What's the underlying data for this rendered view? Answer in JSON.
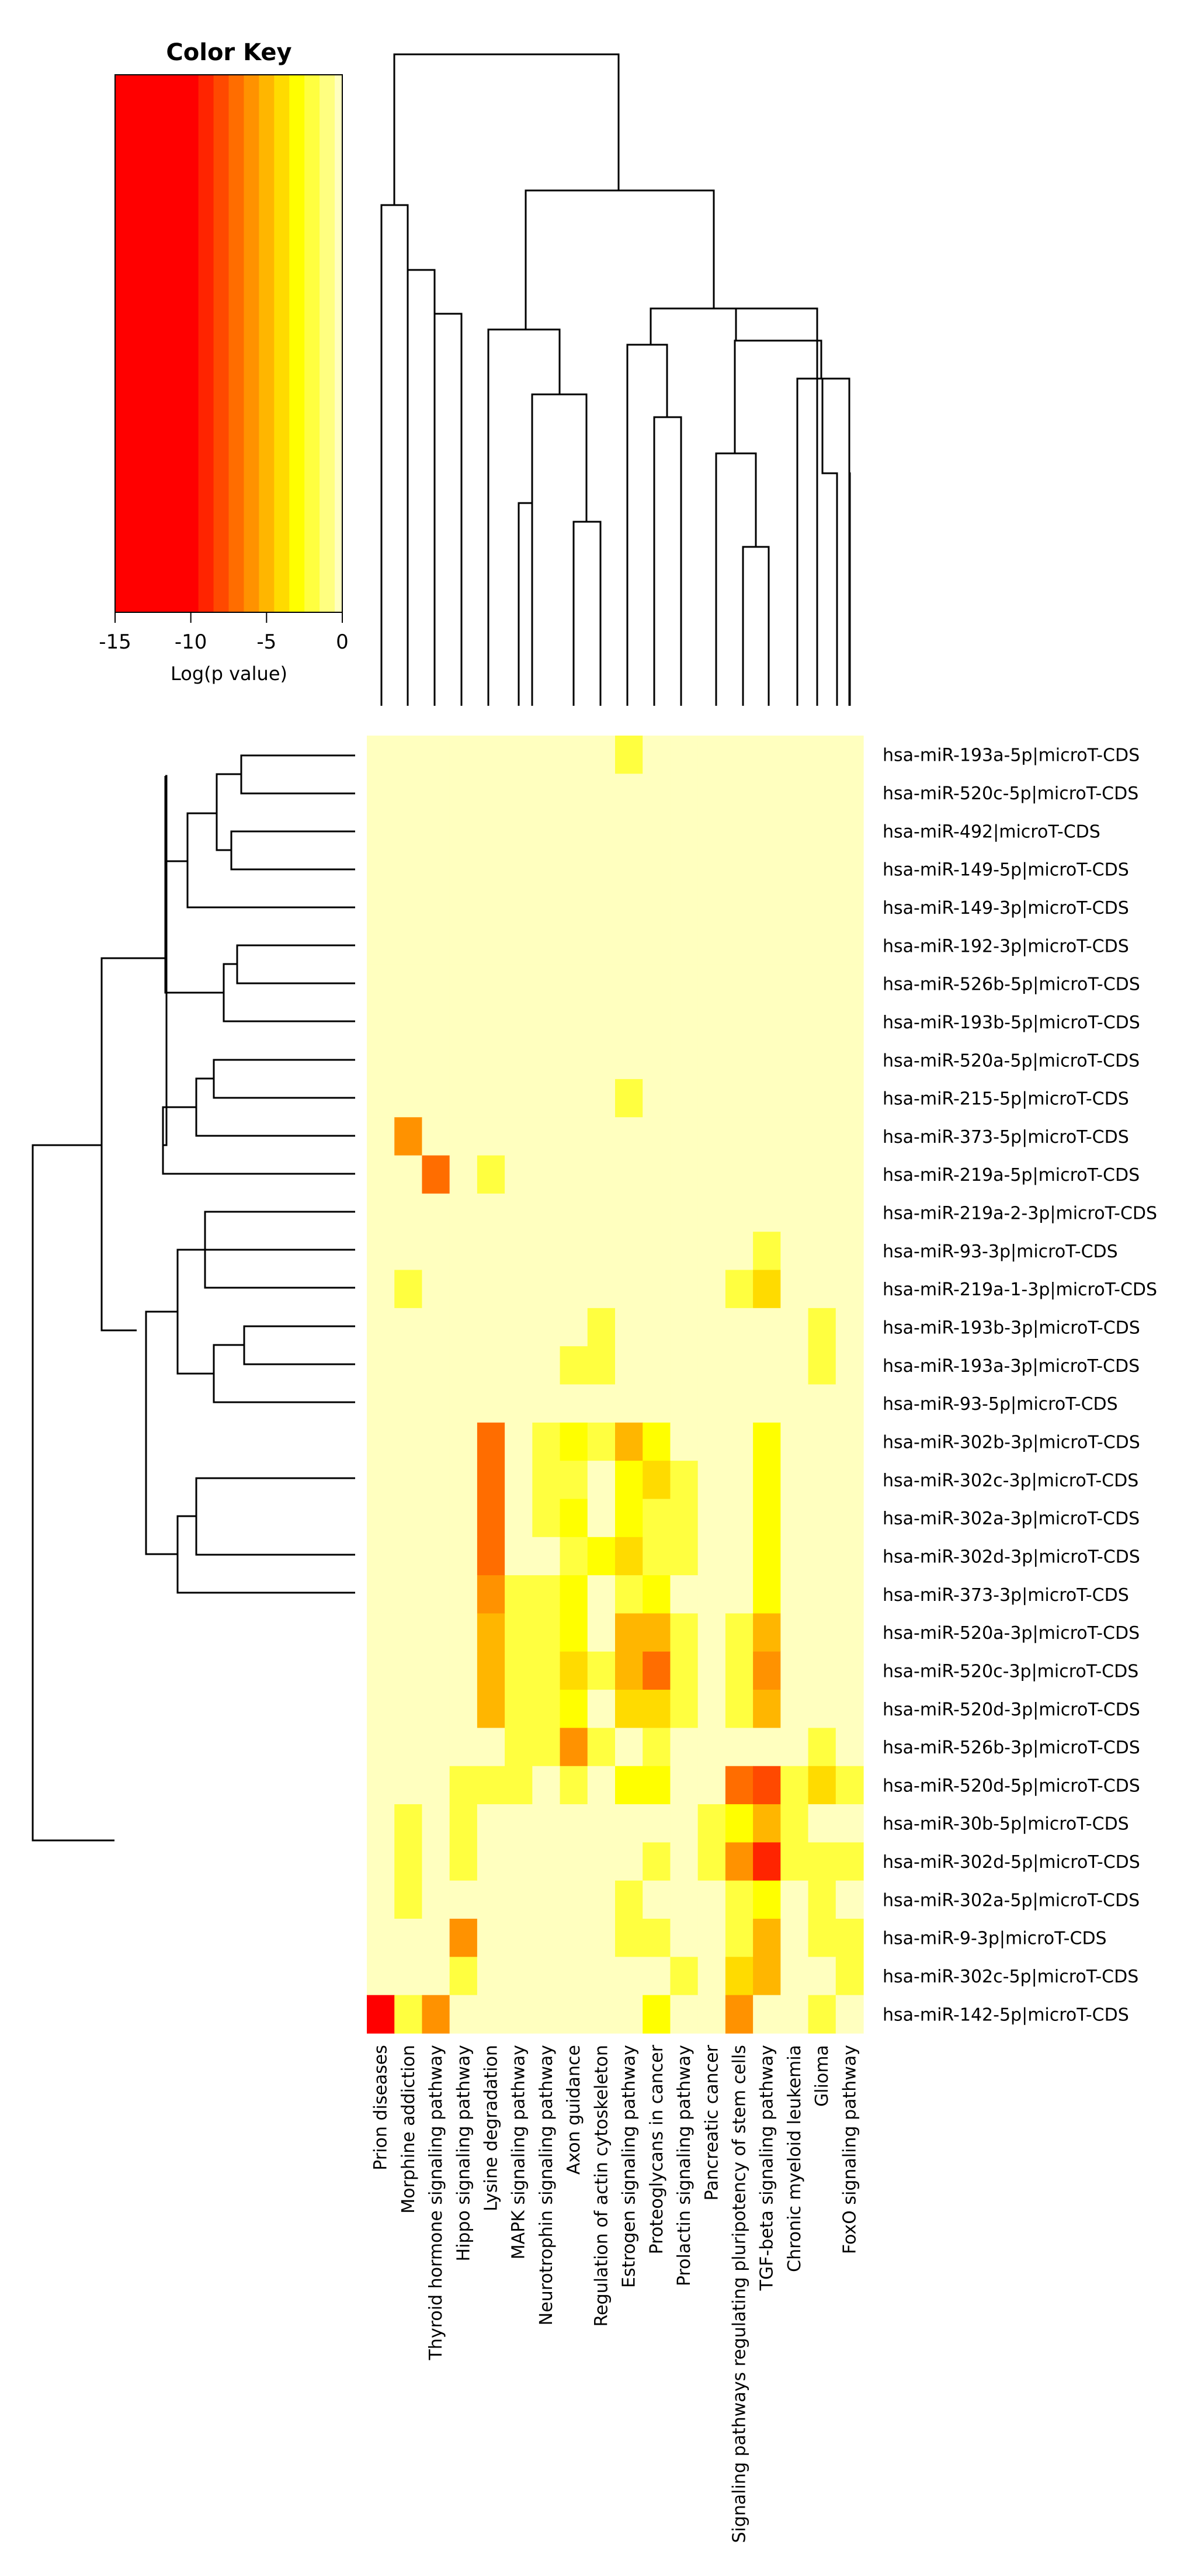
{
  "chart_data": {
    "type": "heatmap",
    "title": "",
    "color_key": {
      "title": "Color Key",
      "xlabel": "Log(p value)",
      "range": [
        -15,
        0
      ],
      "ticks": [
        -15,
        -10,
        -5,
        0
      ],
      "bins": [
        {
          "from": -15,
          "to": -9.5,
          "color": "#ff0000"
        },
        {
          "from": -9.5,
          "to": -8.5,
          "color": "#ff2400"
        },
        {
          "from": -8.5,
          "to": -7.5,
          "color": "#ff4900"
        },
        {
          "from": -7.5,
          "to": -6.5,
          "color": "#ff6d00"
        },
        {
          "from": -6.5,
          "to": -5.5,
          "color": "#ff9200"
        },
        {
          "from": -5.5,
          "to": -4.5,
          "color": "#ffb600"
        },
        {
          "from": -4.5,
          "to": -3.5,
          "color": "#ffdb00"
        },
        {
          "from": -3.5,
          "to": -2.5,
          "color": "#ffff00"
        },
        {
          "from": -2.5,
          "to": -1.5,
          "color": "#ffff40"
        },
        {
          "from": -1.5,
          "to": -0.5,
          "color": "#ffff80"
        },
        {
          "from": -0.5,
          "to": 0,
          "color": "#ffffbf"
        }
      ]
    },
    "columns": [
      "Prion diseases",
      "Morphine addiction",
      "Thyroid hormone signaling pathway",
      "Hippo signaling pathway",
      "Lysine degradation",
      "MAPK signaling pathway",
      "Neurotrophin signaling pathway",
      "Axon guidance",
      "Regulation of actin cytoskeleton",
      "Estrogen signaling pathway",
      "Proteoglycans in cancer",
      "Prolactin signaling pathway",
      "Pancreatic cancer",
      "Signaling pathways regulating pluripotency of stem cells",
      "TGF-beta signaling pathway",
      "Chronic myeloid leukemia",
      "Glioma",
      "FoxO signaling pathway"
    ],
    "rows": [
      "hsa-miR-193a-5p|microT-CDS",
      "hsa-miR-520c-5p|microT-CDS",
      "hsa-miR-492|microT-CDS",
      "hsa-miR-149-5p|microT-CDS",
      "hsa-miR-149-3p|microT-CDS",
      "hsa-miR-192-3p|microT-CDS",
      "hsa-miR-526b-5p|microT-CDS",
      "hsa-miR-193b-5p|microT-CDS",
      "hsa-miR-520a-5p|microT-CDS",
      "hsa-miR-215-5p|microT-CDS",
      "hsa-miR-373-5p|microT-CDS",
      "hsa-miR-219a-5p|microT-CDS",
      "hsa-miR-219a-2-3p|microT-CDS",
      "hsa-miR-93-3p|microT-CDS",
      "hsa-miR-219a-1-3p|microT-CDS",
      "hsa-miR-193b-3p|microT-CDS",
      "hsa-miR-193a-3p|microT-CDS",
      "hsa-miR-93-5p|microT-CDS",
      "hsa-miR-302b-3p|microT-CDS",
      "hsa-miR-302c-3p|microT-CDS",
      "hsa-miR-302a-3p|microT-CDS",
      "hsa-miR-302d-3p|microT-CDS",
      "hsa-miR-373-3p|microT-CDS",
      "hsa-miR-520a-3p|microT-CDS",
      "hsa-miR-520c-3p|microT-CDS",
      "hsa-miR-520d-3p|microT-CDS",
      "hsa-miR-526b-3p|microT-CDS",
      "hsa-miR-520d-5p|microT-CDS",
      "hsa-miR-30b-5p|microT-CDS",
      "hsa-miR-302d-5p|microT-CDS",
      "hsa-miR-302a-5p|microT-CDS",
      "hsa-miR-9-3p|microT-CDS",
      "hsa-miR-302c-5p|microT-CDS",
      "hsa-miR-142-5p|microT-CDS"
    ],
    "values": [
      [
        0,
        0,
        0,
        0,
        0,
        0,
        0,
        0,
        0,
        -2,
        0,
        0,
        0,
        0,
        0,
        0,
        0,
        0
      ],
      [
        0,
        0,
        0,
        0,
        0,
        0,
        0,
        0,
        0,
        0,
        0,
        0,
        0,
        0,
        0,
        0,
        0,
        0
      ],
      [
        0,
        0,
        0,
        0,
        0,
        0,
        0,
        0,
        0,
        0,
        0,
        0,
        0,
        0,
        0,
        0,
        0,
        0
      ],
      [
        0,
        0,
        0,
        0,
        0,
        0,
        0,
        0,
        0,
        0,
        0,
        0,
        0,
        0,
        0,
        0,
        0,
        0
      ],
      [
        0,
        0,
        0,
        0,
        0,
        0,
        0,
        0,
        0,
        0,
        0,
        0,
        0,
        0,
        0,
        0,
        0,
        0
      ],
      [
        0,
        0,
        0,
        0,
        0,
        0,
        0,
        0,
        0,
        0,
        0,
        0,
        0,
        0,
        0,
        0,
        0,
        0
      ],
      [
        0,
        0,
        0,
        0,
        0,
        0,
        0,
        0,
        0,
        0,
        0,
        0,
        0,
        0,
        0,
        0,
        0,
        0
      ],
      [
        0,
        0,
        0,
        0,
        0,
        0,
        0,
        0,
        0,
        0,
        0,
        0,
        0,
        0,
        0,
        0,
        0,
        0
      ],
      [
        0,
        0,
        0,
        0,
        0,
        0,
        0,
        0,
        0,
        0,
        0,
        0,
        0,
        0,
        0,
        0,
        0,
        0
      ],
      [
        0,
        0,
        0,
        0,
        0,
        0,
        0,
        0,
        0,
        -2,
        0,
        0,
        0,
        0,
        0,
        0,
        0,
        0
      ],
      [
        0,
        -6,
        0,
        0,
        0,
        0,
        0,
        0,
        0,
        0,
        0,
        0,
        0,
        0,
        0,
        0,
        0,
        0
      ],
      [
        0,
        0,
        -7,
        0,
        -2,
        0,
        0,
        0,
        0,
        0,
        0,
        0,
        0,
        0,
        0,
        0,
        0,
        0
      ],
      [
        0,
        0,
        0,
        0,
        0,
        0,
        0,
        0,
        0,
        0,
        0,
        0,
        0,
        0,
        0,
        0,
        0,
        0
      ],
      [
        0,
        0,
        0,
        0,
        0,
        0,
        0,
        0,
        0,
        0,
        0,
        0,
        0,
        0,
        -2,
        0,
        0,
        0
      ],
      [
        0,
        -2,
        0,
        0,
        0,
        0,
        0,
        0,
        0,
        0,
        0,
        0,
        0,
        -2,
        -4,
        0,
        0,
        0
      ],
      [
        0,
        0,
        0,
        0,
        0,
        0,
        0,
        0,
        -2,
        0,
        0,
        0,
        0,
        0,
        0,
        0,
        -2,
        0
      ],
      [
        0,
        0,
        0,
        0,
        0,
        0,
        0,
        -2,
        -2,
        0,
        0,
        0,
        0,
        0,
        0,
        0,
        -2,
        0
      ],
      [
        0,
        0,
        0,
        0,
        0,
        0,
        0,
        0,
        0,
        0,
        0,
        0,
        0,
        0,
        0,
        0,
        0,
        0
      ],
      [
        0,
        0,
        0,
        0,
        -7,
        0,
        -2,
        -3,
        -2,
        -5,
        -3,
        0,
        0,
        0,
        -3,
        0,
        0,
        0
      ],
      [
        0,
        0,
        0,
        0,
        -7,
        0,
        -2,
        -2,
        0,
        -3,
        -4,
        -2,
        0,
        0,
        -3,
        0,
        0,
        0
      ],
      [
        0,
        0,
        0,
        0,
        -7,
        0,
        -2,
        -3,
        0,
        -3,
        -2,
        -2,
        0,
        0,
        -3,
        0,
        0,
        0
      ],
      [
        0,
        0,
        0,
        0,
        -7,
        0,
        0,
        -2,
        -3,
        -4,
        -2,
        -2,
        0,
        0,
        -3,
        0,
        0,
        0
      ],
      [
        0,
        0,
        0,
        0,
        -6,
        -2,
        -2,
        -3,
        0,
        -2,
        -3,
        0,
        0,
        0,
        -3,
        0,
        0,
        0
      ],
      [
        0,
        0,
        0,
        0,
        -5,
        -2,
        -2,
        -3,
        0,
        -5,
        -5,
        -2,
        0,
        -2,
        -5,
        0,
        0,
        0
      ],
      [
        0,
        0,
        0,
        0,
        -5,
        -2,
        -2,
        -4,
        -2,
        -5,
        -7,
        -2,
        0,
        -2,
        -6,
        0,
        0,
        0
      ],
      [
        0,
        0,
        0,
        0,
        -5,
        -2,
        -2,
        -3,
        0,
        -4,
        -4,
        -2,
        0,
        -2,
        -5,
        0,
        0,
        0
      ],
      [
        0,
        0,
        0,
        0,
        0,
        -2,
        -2,
        -6,
        -2,
        0,
        -2,
        0,
        0,
        0,
        0,
        0,
        -2,
        0
      ],
      [
        0,
        0,
        0,
        -2,
        -2,
        -2,
        0,
        -2,
        0,
        -3,
        -3,
        0,
        0,
        -7,
        -8,
        -2,
        -4,
        -2
      ],
      [
        0,
        -2,
        0,
        -2,
        0,
        0,
        0,
        0,
        0,
        0,
        0,
        0,
        -2,
        -3,
        -5,
        -2,
        0,
        0
      ],
      [
        0,
        -2,
        0,
        -2,
        0,
        0,
        0,
        0,
        0,
        0,
        -2,
        0,
        -2,
        -6,
        -9,
        -2,
        -2,
        -2
      ],
      [
        0,
        -2,
        0,
        0,
        0,
        0,
        0,
        0,
        0,
        -2,
        0,
        0,
        0,
        -2,
        -3,
        0,
        -2,
        0
      ],
      [
        0,
        0,
        0,
        -6,
        0,
        0,
        0,
        0,
        0,
        -2,
        -2,
        0,
        0,
        -2,
        -5,
        0,
        -2,
        -2
      ],
      [
        0,
        0,
        0,
        -2,
        0,
        0,
        0,
        0,
        0,
        0,
        0,
        -2,
        0,
        -4,
        -5,
        0,
        0,
        -2
      ],
      [
        -10,
        -2,
        -6,
        0,
        0,
        0,
        0,
        0,
        0,
        0,
        -3,
        0,
        0,
        -6,
        0,
        0,
        -2,
        0
      ]
    ]
  }
}
